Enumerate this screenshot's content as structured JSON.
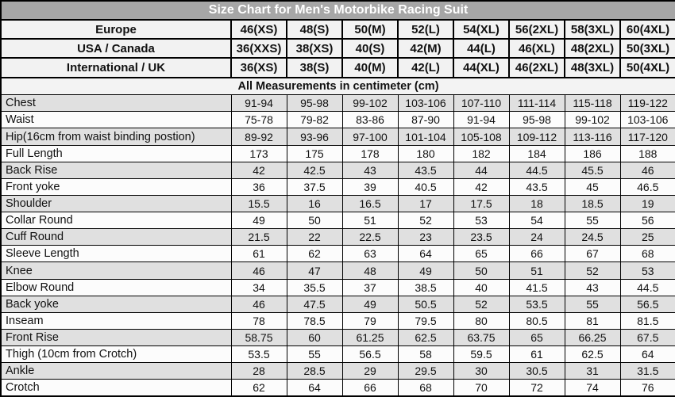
{
  "title": "Size Chart for Men's Motorbike Racing Suit",
  "unit_note": "All Measurements in centimeter (cm)",
  "colors": {
    "title_bg": "#a6a6a6",
    "title_text": "#ffffff",
    "header_row_bg": "#f2f2f2",
    "shaded_row_bg": "#e0e0e0",
    "plain_row_bg": "#fcfcfc",
    "border": "#000000"
  },
  "chart_data": {
    "type": "table",
    "title": "Size Chart for Men's Motorbike Racing Suit",
    "unit": "centimeter (cm)",
    "unit_note": "All Measurements in centimeter (cm)",
    "size_system_rows": [
      {
        "label": "Europe",
        "values": [
          "46(XS)",
          "48(S)",
          "50(M)",
          "52(L)",
          "54(XL)",
          "56(2XL)",
          "58(3XL)",
          "60(4XL)"
        ]
      },
      {
        "label": "USA / Canada",
        "values": [
          "36(XXS)",
          "38(XS)",
          "40(S)",
          "42(M)",
          "44(L)",
          "46(XL)",
          "48(2XL)",
          "50(3XL)"
        ]
      },
      {
        "label": "International / UK",
        "values": [
          "36(XS)",
          "38(S)",
          "40(M)",
          "42(L)",
          "44(XL)",
          "46(2XL)",
          "48(3XL)",
          "50(4XL)"
        ]
      }
    ],
    "measurement_rows": [
      {
        "label": "Chest",
        "values": [
          "91-94",
          "95-98",
          "99-102",
          "103-106",
          "107-110",
          "111-114",
          "115-118",
          "119-122"
        ]
      },
      {
        "label": "Waist",
        "values": [
          "75-78",
          "79-82",
          "83-86",
          "87-90",
          "91-94",
          "95-98",
          "99-102",
          "103-106"
        ]
      },
      {
        "label": "Hip(16cm from waist binding postion)",
        "values": [
          "89-92",
          "93-96",
          "97-100",
          "101-104",
          "105-108",
          "109-112",
          "113-116",
          "117-120"
        ]
      },
      {
        "label": "Full Length",
        "values": [
          "173",
          "175",
          "178",
          "180",
          "182",
          "184",
          "186",
          "188"
        ]
      },
      {
        "label": "Back Rise",
        "values": [
          "42",
          "42.5",
          "43",
          "43.5",
          "44",
          "44.5",
          "45.5",
          "46"
        ]
      },
      {
        "label": "Front yoke",
        "values": [
          "36",
          "37.5",
          "39",
          "40.5",
          "42",
          "43.5",
          "45",
          "46.5"
        ]
      },
      {
        "label": "Shoulder",
        "values": [
          "15.5",
          "16",
          "16.5",
          "17",
          "17.5",
          "18",
          "18.5",
          "19"
        ]
      },
      {
        "label": "Collar Round",
        "values": [
          "49",
          "50",
          "51",
          "52",
          "53",
          "54",
          "55",
          "56"
        ]
      },
      {
        "label": "Cuff Round",
        "values": [
          "21.5",
          "22",
          "22.5",
          "23",
          "23.5",
          "24",
          "24.5",
          "25"
        ]
      },
      {
        "label": "Sleeve Length",
        "values": [
          "61",
          "62",
          "63",
          "64",
          "65",
          "66",
          "67",
          "68"
        ]
      },
      {
        "label": "Knee",
        "values": [
          "46",
          "47",
          "48",
          "49",
          "50",
          "51",
          "52",
          "53"
        ]
      },
      {
        "label": "Elbow Round",
        "values": [
          "34",
          "35.5",
          "37",
          "38.5",
          "40",
          "41.5",
          "43",
          "44.5"
        ]
      },
      {
        "label": "Back yoke",
        "values": [
          "46",
          "47.5",
          "49",
          "50.5",
          "52",
          "53.5",
          "55",
          "56.5"
        ]
      },
      {
        "label": "Inseam",
        "values": [
          "78",
          "78.5",
          "79",
          "79.5",
          "80",
          "80.5",
          "81",
          "81.5"
        ]
      },
      {
        "label": "Front Rise",
        "values": [
          "58.75",
          "60",
          "61.25",
          "62.5",
          "63.75",
          "65",
          "66.25",
          "67.5"
        ]
      },
      {
        "label": "Thigh (10cm from Crotch)",
        "values": [
          "53.5",
          "55",
          "56.5",
          "58",
          "59.5",
          "61",
          "62.5",
          "64"
        ]
      },
      {
        "label": "Ankle",
        "values": [
          "28",
          "28.5",
          "29",
          "29.5",
          "30",
          "30.5",
          "31",
          "31.5"
        ]
      },
      {
        "label": "Crotch",
        "values": [
          "62",
          "64",
          "66",
          "68",
          "70",
          "72",
          "74",
          "76"
        ]
      }
    ]
  }
}
